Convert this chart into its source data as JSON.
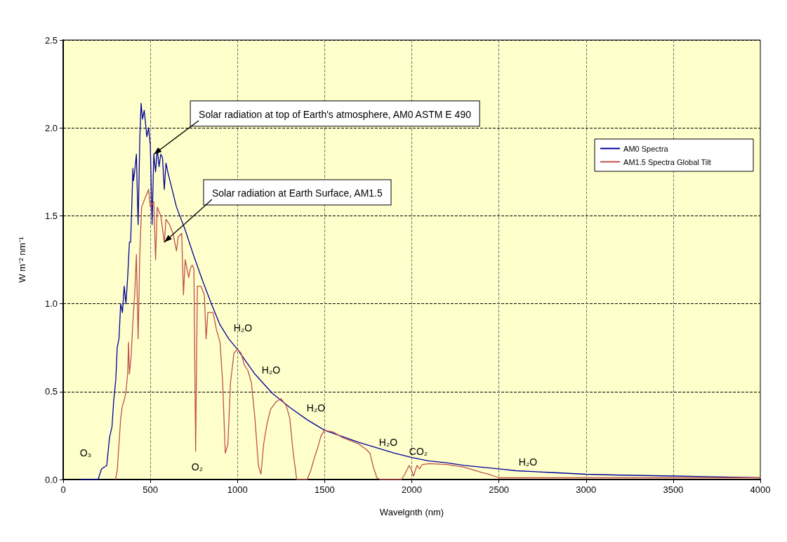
{
  "chart_data": {
    "type": "line",
    "xlabel": "Wavelgnth (nm)",
    "ylabel": "W m⁻² nm⁻¹",
    "xlim": [
      0,
      4000
    ],
    "xticks": [
      0,
      500,
      1000,
      1500,
      2000,
      2500,
      3000,
      3500,
      4000
    ],
    "ylim": [
      0,
      2.5
    ],
    "yticks": [
      {
        "value": 0,
        "label": "0.0"
      },
      0.5,
      {
        "value": 1,
        "label": "1.0"
      },
      1.5,
      {
        "value": 2,
        "label": "2.0"
      },
      2.5
    ],
    "grid": true,
    "legend": "top right",
    "marker": "none",
    "line_style": "solid",
    "series": [
      {
        "name": "AM0 Spectra",
        "color": "#000099",
        "x": [
          100,
          200,
          220,
          250,
          266,
          280,
          290,
          302,
          310,
          320,
          330,
          340,
          350,
          360,
          370,
          380,
          387,
          395,
          400,
          403,
          410,
          420,
          430,
          440,
          447,
          455,
          465,
          480,
          490,
          500,
          510,
          520,
          530,
          540,
          550,
          560,
          570,
          580,
          590,
          600,
          620,
          650,
          700,
          750,
          800,
          850,
          900,
          950,
          1000,
          1100,
          1200,
          1300,
          1400,
          1500,
          1600,
          1700,
          1800,
          1900,
          2000,
          2100,
          2200,
          2300,
          2400,
          2500,
          2600,
          2800,
          3000,
          3200,
          3500,
          4000
        ],
        "values": [
          0,
          0,
          0.06,
          0.08,
          0.24,
          0.3,
          0.45,
          0.57,
          0.75,
          0.8,
          1.0,
          0.95,
          1.1,
          1.0,
          1.15,
          1.35,
          1.35,
          1.6,
          1.77,
          1.7,
          1.75,
          1.85,
          1.45,
          1.95,
          2.14,
          2.05,
          2.1,
          1.95,
          2.0,
          1.9,
          1.45,
          1.85,
          1.75,
          1.88,
          1.78,
          1.85,
          1.83,
          1.65,
          1.8,
          1.75,
          1.67,
          1.55,
          1.42,
          1.27,
          1.13,
          1.0,
          0.88,
          0.8,
          0.74,
          0.6,
          0.49,
          0.41,
          0.34,
          0.28,
          0.245,
          0.21,
          0.18,
          0.15,
          0.125,
          0.105,
          0.095,
          0.08,
          0.07,
          0.06,
          0.05,
          0.04,
          0.03,
          0.025,
          0.02,
          0.01
        ]
      },
      {
        "name": "AM1.5 Spectra Global Tilt",
        "color": "#c0504d",
        "x": [
          300,
          310,
          320,
          330,
          340,
          350,
          360,
          370,
          375,
          380,
          390,
          400,
          410,
          420,
          430,
          440,
          450,
          470,
          490,
          500,
          520,
          530,
          540,
          560,
          580,
          590,
          610,
          630,
          650,
          660,
          680,
          690,
          700,
          720,
          730,
          740,
          750,
          760,
          770,
          790,
          810,
          820,
          830,
          860,
          880,
          900,
          915,
          930,
          945,
          960,
          980,
          1000,
          1020,
          1040,
          1060,
          1080,
          1100,
          1120,
          1135,
          1150,
          1170,
          1190,
          1220,
          1250,
          1280,
          1300,
          1320,
          1340,
          1400,
          1420,
          1440,
          1460,
          1480,
          1500,
          1550,
          1600,
          1650,
          1700,
          1740,
          1760,
          1780,
          1800,
          1820,
          1940,
          1960,
          1985,
          2000,
          2010,
          2030,
          2045,
          2060,
          2100,
          2200,
          2300,
          2350,
          2400,
          2440,
          2470,
          2500,
          4000
        ],
        "values": [
          0,
          0.05,
          0.2,
          0.35,
          0.42,
          0.45,
          0.5,
          0.6,
          0.78,
          0.6,
          0.7,
          0.9,
          1.05,
          1.28,
          0.8,
          1.3,
          1.55,
          1.6,
          1.65,
          1.55,
          1.58,
          1.25,
          1.55,
          1.5,
          1.35,
          1.48,
          1.45,
          1.4,
          1.3,
          1.38,
          1.4,
          1.05,
          1.25,
          1.15,
          1.2,
          1.22,
          1.2,
          0.16,
          1.1,
          1.1,
          1.05,
          0.8,
          0.95,
          0.95,
          0.85,
          0.78,
          0.55,
          0.15,
          0.2,
          0.55,
          0.72,
          0.74,
          0.72,
          0.65,
          0.62,
          0.55,
          0.35,
          0.08,
          0.03,
          0.2,
          0.32,
          0.4,
          0.44,
          0.46,
          0.42,
          0.35,
          0.15,
          0,
          0,
          0.05,
          0.12,
          0.18,
          0.25,
          0.28,
          0.27,
          0.24,
          0.22,
          0.2,
          0.17,
          0.15,
          0.07,
          0.01,
          0,
          0,
          0.03,
          0.08,
          0.05,
          0.02,
          0.08,
          0.06,
          0.085,
          0.09,
          0.085,
          0.07,
          0.055,
          0.04,
          0.03,
          0.02,
          0.01,
          0.01
        ]
      }
    ],
    "annotations": [
      {
        "text": "Solar radiation at top of Earth's atmosphere, AM0 ASTM E 490",
        "x": 520,
        "y": 1.85
      },
      {
        "text": "Solar radiation at Earth Surface, AM1.5",
        "x": 580,
        "y": 1.35
      },
      "O₃",
      "O₂",
      "H₂O",
      "H₂O",
      "H₂O",
      "H₂O",
      "CO₂",
      "H₂O"
    ]
  }
}
